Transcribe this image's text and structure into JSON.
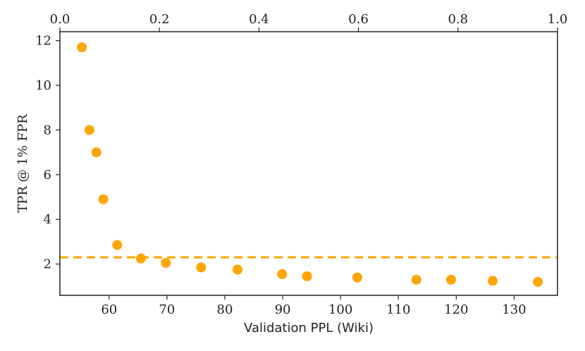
{
  "chart_data": {
    "type": "scatter",
    "xlabel": "Validation PPL (Wiki)",
    "ylabel": "TPR @ 1% FPR",
    "xlim": [
      51.5,
      137.5
    ],
    "ylim": [
      0.6,
      12.4
    ],
    "xticks": [
      60,
      70,
      80,
      90,
      100,
      110,
      120,
      130
    ],
    "yticks": [
      2,
      4,
      6,
      8,
      10,
      12
    ],
    "top_xlim": [
      0.0,
      1.0
    ],
    "top_xticks": [
      "0.0",
      "0.2",
      "0.4",
      "0.6",
      "0.8",
      "1.0"
    ],
    "series": [
      {
        "color": "#FFA500",
        "points": [
          {
            "x": 55.3,
            "y": 11.7
          },
          {
            "x": 56.6,
            "y": 8.0
          },
          {
            "x": 57.8,
            "y": 7.0
          },
          {
            "x": 59.0,
            "y": 4.9
          },
          {
            "x": 61.4,
            "y": 2.85
          },
          {
            "x": 65.5,
            "y": 2.25
          },
          {
            "x": 69.8,
            "y": 2.05
          },
          {
            "x": 75.9,
            "y": 1.85
          },
          {
            "x": 82.2,
            "y": 1.75
          },
          {
            "x": 89.9,
            "y": 1.55
          },
          {
            "x": 94.2,
            "y": 1.45
          },
          {
            "x": 102.9,
            "y": 1.4
          },
          {
            "x": 113.1,
            "y": 1.3
          },
          {
            "x": 119.1,
            "y": 1.3
          },
          {
            "x": 126.3,
            "y": 1.25
          },
          {
            "x": 134.1,
            "y": 1.2
          }
        ]
      }
    ],
    "reference_line": {
      "y": 2.3,
      "color": "#FFA500",
      "style": "dashed"
    },
    "grid": false
  }
}
